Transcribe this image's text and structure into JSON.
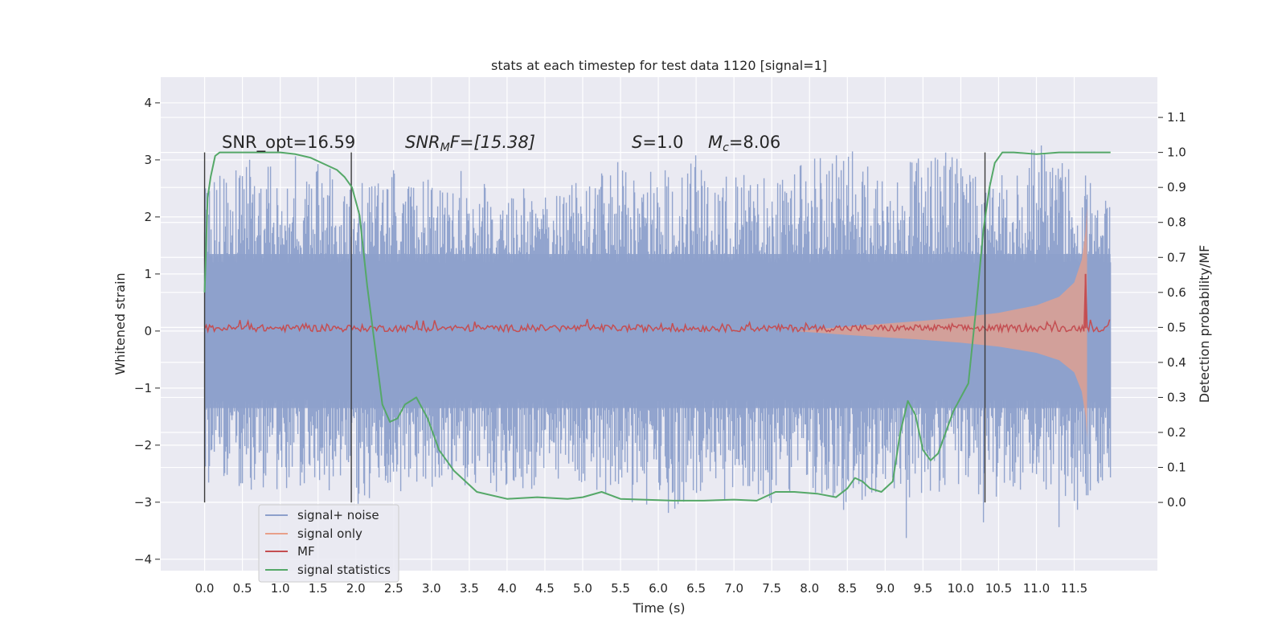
{
  "chart_data": {
    "type": "line",
    "title": "stats at each timestep for test data 1120 [signal=1]",
    "xlabel": "Time (s)",
    "ylabel": "Whitened strain",
    "y2label": "Detection probability/MF",
    "xlim": [
      -0.58,
      12.6
    ],
    "ylim": [
      -4.2,
      4.45
    ],
    "y2lim": [
      -0.195,
      1.215
    ],
    "x_ticks": [
      0.0,
      0.5,
      1.0,
      1.5,
      2.0,
      2.5,
      3.0,
      3.5,
      4.0,
      4.5,
      5.0,
      5.5,
      6.0,
      6.5,
      7.0,
      7.5,
      8.0,
      8.5,
      9.0,
      9.5,
      10.0,
      10.5,
      11.0,
      11.5
    ],
    "x_tick_labels": [
      "0.0",
      "0.5",
      "1.0",
      "1.5",
      "2.0",
      "2.5",
      "3.0",
      "3.5",
      "4.0",
      "4.5",
      "5.0",
      "5.5",
      "6.0",
      "6.5",
      "7.0",
      "7.5",
      "8.0",
      "8.5",
      "9.0",
      "9.5",
      "10.0",
      "10.5",
      "11.0",
      "11.5"
    ],
    "y_ticks": [
      4,
      3,
      2,
      1,
      0,
      -1,
      -2,
      -3,
      -4
    ],
    "y_tick_labels": [
      "4",
      "3",
      "2",
      "1",
      "0",
      "−1",
      "−2",
      "−3",
      "−4"
    ],
    "y2_ticks": [
      1.1,
      1.0,
      0.9,
      0.8,
      0.7,
      0.6,
      0.5,
      0.4,
      0.3,
      0.2,
      0.1,
      0.0
    ],
    "y2_tick_labels": [
      "1.1",
      "1.0",
      "0.9",
      "0.8",
      "0.7",
      "0.6",
      "0.5",
      "0.4",
      "0.3",
      "0.2",
      "0.1",
      "0.0"
    ],
    "grid": true,
    "legend": {
      "position": "lower-left",
      "entries": [
        {
          "label": "signal+ noise",
          "color": "#8da0cb"
        },
        {
          "label": "signal only",
          "color": "#e8a08a"
        },
        {
          "label": "MF",
          "color": "#c44e52"
        },
        {
          "label": "signal statistics",
          "color": "#55a868"
        }
      ]
    },
    "annotations": {
      "snr_opt": "SNR_opt=16.59",
      "snr_mf_main": "SNR",
      "snr_mf_sub": "M",
      "snr_mf_tail": "F=[15.38]",
      "s_main": "S",
      "s_tail": "=1.0",
      "mc_main": "M",
      "mc_sub": "c",
      "mc_tail": "=8.06"
    },
    "vertical_markers_x": [
      0.0,
      1.94,
      10.32
    ],
    "signal_noise_envelope": {
      "x": [
        0.0,
        0.5,
        1.0,
        1.5,
        2.0,
        2.5,
        3.0,
        3.5,
        4.0,
        4.5,
        5.0,
        5.5,
        6.0,
        6.5,
        7.0,
        7.5,
        8.0,
        8.5,
        9.0,
        9.5,
        10.0,
        10.5,
        11.0,
        11.5,
        11.98
      ],
      "upper": [
        2.6,
        2.9,
        3.1,
        2.9,
        2.5,
        2.8,
        2.6,
        2.4,
        2.7,
        2.3,
        2.6,
        2.9,
        2.7,
        3.0,
        2.8,
        2.6,
        2.9,
        3.2,
        2.7,
        3.0,
        3.1,
        2.8,
        3.2,
        2.9,
        2.2
      ],
      "lower": [
        -2.9,
        -2.7,
        -2.8,
        -2.6,
        -3.0,
        -2.7,
        -2.9,
        -2.6,
        -2.8,
        -2.7,
        -2.6,
        -2.9,
        -3.2,
        -2.8,
        -2.9,
        -3.0,
        -2.7,
        -3.1,
        -2.8,
        -2.9,
        -2.7,
        -3.0,
        -2.6,
        -3.1,
        -2.5
      ],
      "core_amplitude": 1.35
    },
    "signal_only_envelope": {
      "x": [
        7.8,
        8.5,
        9.0,
        9.5,
        10.0,
        10.5,
        11.0,
        11.3,
        11.5,
        11.6,
        11.65,
        11.67
      ],
      "amplitude": [
        0.0,
        0.08,
        0.13,
        0.18,
        0.24,
        0.32,
        0.45,
        0.6,
        0.85,
        1.25,
        1.75,
        2.2
      ]
    },
    "mf": {
      "x_start": 0.0,
      "x_end": 11.98,
      "baseline": 0.05,
      "peak_x": 11.65,
      "peak_y": 1.0
    },
    "signal_statistics": {
      "x": [
        0.0,
        0.04,
        0.08,
        0.14,
        0.2,
        0.3,
        0.5,
        0.8,
        1.0,
        1.2,
        1.4,
        1.6,
        1.75,
        1.85,
        1.95,
        2.05,
        2.15,
        2.25,
        2.35,
        2.45,
        2.55,
        2.65,
        2.8,
        2.95,
        3.1,
        3.3,
        3.6,
        4.0,
        4.4,
        4.8,
        5.0,
        5.25,
        5.5,
        5.8,
        6.2,
        6.6,
        7.0,
        7.3,
        7.55,
        7.8,
        8.1,
        8.35,
        8.5,
        8.6,
        8.7,
        8.8,
        8.95,
        9.1,
        9.2,
        9.3,
        9.4,
        9.5,
        9.6,
        9.7,
        9.8,
        9.9,
        10.0,
        10.1,
        10.2,
        10.3,
        10.38,
        10.45,
        10.55,
        10.7,
        11.0,
        11.3,
        11.6,
        11.98
      ],
      "y": [
        0.6,
        0.87,
        0.93,
        0.99,
        1.0,
        1.0,
        1.0,
        1.0,
        1.0,
        0.995,
        0.985,
        0.965,
        0.95,
        0.93,
        0.9,
        0.82,
        0.62,
        0.45,
        0.28,
        0.23,
        0.24,
        0.28,
        0.3,
        0.24,
        0.15,
        0.09,
        0.03,
        0.01,
        0.015,
        0.01,
        0.015,
        0.03,
        0.01,
        0.008,
        0.005,
        0.005,
        0.008,
        0.005,
        0.03,
        0.03,
        0.025,
        0.015,
        0.04,
        0.07,
        0.06,
        0.04,
        0.03,
        0.06,
        0.2,
        0.29,
        0.25,
        0.15,
        0.12,
        0.14,
        0.2,
        0.26,
        0.3,
        0.34,
        0.55,
        0.78,
        0.9,
        0.97,
        1.0,
        1.0,
        0.995,
        1.0,
        1.0,
        1.0
      ]
    }
  }
}
